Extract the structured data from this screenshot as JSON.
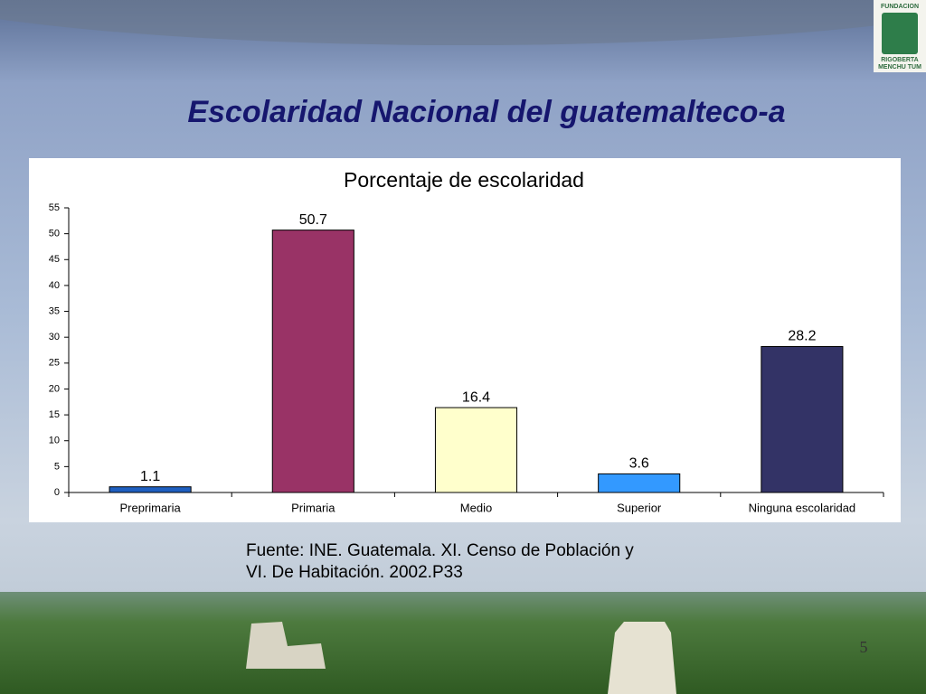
{
  "title": "Escolaridad Nacional del guatemalteco-a",
  "logo": {
    "lines": [
      "FUNDACION",
      "RIGOBERTA",
      "MENCHU TUM"
    ]
  },
  "chart_data": {
    "type": "bar",
    "title": "Porcentaje de escolaridad",
    "categories": [
      "Preprimaria",
      "Primaria",
      "Medio",
      "Superior",
      "Ninguna escolaridad"
    ],
    "values": [
      1.1,
      50.7,
      16.4,
      3.6,
      28.2
    ],
    "colors": [
      "#1f5fc0",
      "#993366",
      "#ffffcc",
      "#3399ff",
      "#333366"
    ],
    "ylim": [
      0,
      55
    ],
    "yticks": [
      0,
      5,
      10,
      15,
      20,
      25,
      30,
      35,
      40,
      45,
      50,
      55
    ],
    "grid": false
  },
  "source": {
    "lines": [
      "Fuente: INE. Guatemala. XI. Censo de Población y",
      "VI. De Habitación. 2002.P33"
    ]
  },
  "page_number": "5"
}
